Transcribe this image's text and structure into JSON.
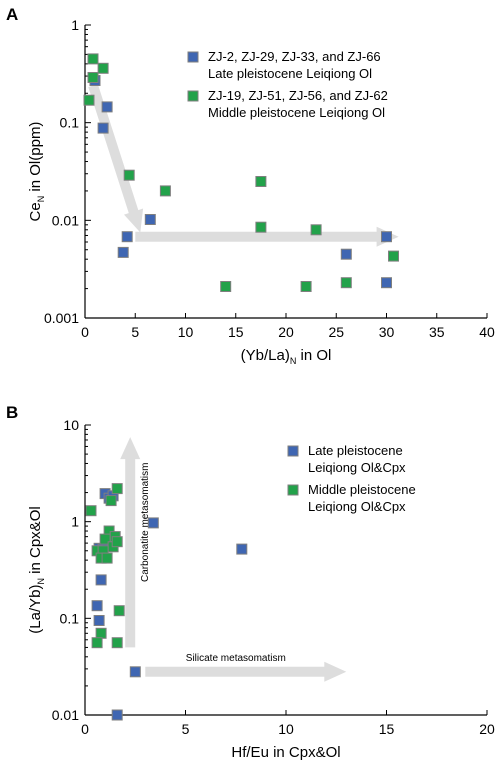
{
  "colors": {
    "late": "#3F66B2",
    "middle": "#22A24A",
    "marker_edge": "#7F7F7F",
    "arrow": "#DDDDDD"
  },
  "chart_data": [
    {
      "panel": "A",
      "type": "scatter",
      "xlabel": "(Yb/La)",
      "xlabel_sub": "N",
      "xlabel_tail": " in Ol",
      "ylabel": "Ce",
      "ylabel_sub": "N",
      "ylabel_tail": " in Ol(ppm)",
      "xlim": [
        0,
        40
      ],
      "ylim": [
        0.001,
        1
      ],
      "yscale": "log",
      "xticks": [
        "0",
        "5",
        "10",
        "15",
        "20",
        "25",
        "30",
        "35",
        "40"
      ],
      "yticks": [
        "0.001",
        "0.01",
        "0.1",
        "1"
      ],
      "legend_position": "top-right",
      "series": [
        {
          "name_lines": [
            "ZJ-2, ZJ-29, ZJ-33, and ZJ-66",
            "Late pleistocene Leiqiong Ol"
          ],
          "color_key": "late",
          "points": [
            [
              1.0,
              0.27
            ],
            [
              2.2,
              0.145
            ],
            [
              1.8,
              0.088
            ],
            [
              4.2,
              0.0068
            ],
            [
              3.8,
              0.0047
            ],
            [
              6.5,
              0.0102
            ],
            [
              26.0,
              0.0045
            ],
            [
              30.0,
              0.0068
            ],
            [
              30.0,
              0.0023
            ]
          ]
        },
        {
          "name_lines": [
            "ZJ-19, ZJ-51, ZJ-56, and ZJ-62",
            "Middle pleistocene Leiqiong Ol"
          ],
          "color_key": "middle",
          "points": [
            [
              0.8,
              0.45
            ],
            [
              0.8,
              0.29
            ],
            [
              0.4,
              0.17
            ],
            [
              1.8,
              0.36
            ],
            [
              4.4,
              0.029
            ],
            [
              8.0,
              0.02
            ],
            [
              17.5,
              0.025
            ],
            [
              17.5,
              0.0085
            ],
            [
              23.0,
              0.008
            ],
            [
              14.0,
              0.0021
            ],
            [
              22.0,
              0.0021
            ],
            [
              26.0,
              0.0023
            ],
            [
              30.7,
              0.0043
            ]
          ]
        }
      ],
      "arrows": [
        {
          "from": [
            0.8,
            0.24
          ],
          "to": [
            5.5,
            0.0075
          ],
          "label": ""
        },
        {
          "from": [
            5.0,
            0.0068
          ],
          "to": [
            31.2,
            0.0068
          ],
          "label": ""
        }
      ]
    },
    {
      "panel": "B",
      "type": "scatter",
      "xlabel": "Hf/Eu in Cpx&Ol",
      "ylabel": "(La/Yb)",
      "ylabel_sub": "N",
      "ylabel_tail": " in Cpx&Ol",
      "xlim": [
        0,
        20
      ],
      "ylim": [
        0.01,
        10
      ],
      "yscale": "log",
      "xticks": [
        "0",
        "5",
        "10",
        "15",
        "20"
      ],
      "yticks": [
        "0.01",
        "0.1",
        "1",
        "10"
      ],
      "legend_position": "top-right",
      "series": [
        {
          "name_lines": [
            "Late pleistocene",
            "Leiqiong Ol&Cpx"
          ],
          "color_key": "late",
          "points": [
            [
              1.0,
              1.95
            ],
            [
              1.2,
              1.75
            ],
            [
              1.4,
              1.85
            ],
            [
              0.7,
              0.53
            ],
            [
              0.9,
              0.52
            ],
            [
              0.8,
              0.25
            ],
            [
              0.6,
              0.135
            ],
            [
              0.7,
              0.095
            ],
            [
              3.4,
              0.97
            ],
            [
              7.8,
              0.52
            ],
            [
              2.5,
              0.028
            ],
            [
              1.6,
              0.01
            ]
          ]
        },
        {
          "name_lines": [
            "Middle pleistocene",
            "Leiqiong Ol&Cpx"
          ],
          "color_key": "middle",
          "points": [
            [
              0.3,
              1.3
            ],
            [
              1.6,
              2.2
            ],
            [
              1.3,
              1.65
            ],
            [
              1.2,
              0.8
            ],
            [
              1.5,
              0.7
            ],
            [
              1.0,
              0.66
            ],
            [
              1.4,
              0.55
            ],
            [
              1.6,
              0.62
            ],
            [
              0.6,
              0.5
            ],
            [
              0.9,
              0.5
            ],
            [
              0.8,
              0.42
            ],
            [
              1.1,
              0.42
            ],
            [
              1.7,
              0.12
            ],
            [
              0.8,
              0.07
            ],
            [
              0.6,
              0.056
            ],
            [
              1.6,
              0.056
            ]
          ]
        }
      ],
      "arrows": [
        {
          "from": [
            2.25,
            0.05
          ],
          "to": [
            2.25,
            7.5
          ],
          "label": "Carbonatite metasomatism"
        },
        {
          "from": [
            3.0,
            0.028
          ],
          "to": [
            13.0,
            0.028
          ],
          "label": "Silicate metasomatism"
        }
      ]
    }
  ]
}
